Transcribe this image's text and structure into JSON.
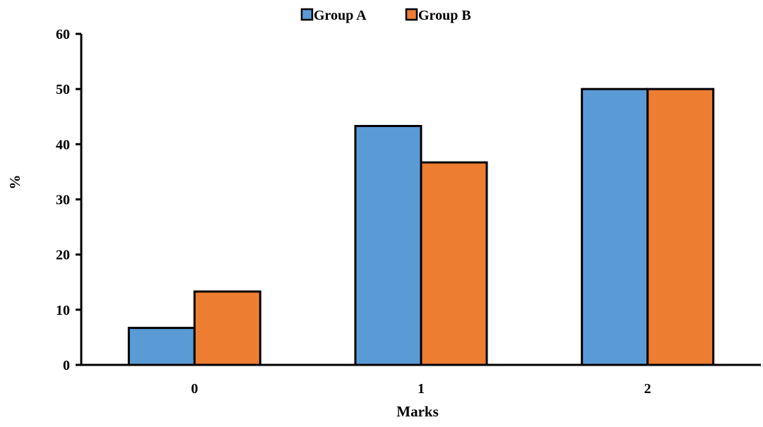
{
  "chart_data": {
    "type": "bar",
    "categories": [
      "0",
      "1",
      "2"
    ],
    "series": [
      {
        "name": "Group A",
        "values": [
          6.7,
          43.3,
          50
        ],
        "color": "#5b9bd5"
      },
      {
        "name": "Group B",
        "values": [
          13.3,
          36.7,
          50
        ],
        "color": "#ed7d31"
      }
    ],
    "xlabel": "Marks",
    "ylabel": "%",
    "ylim": [
      0,
      60
    ],
    "yticks": [
      0,
      10,
      20,
      30,
      40,
      50,
      60
    ],
    "grid": false,
    "legend_position": "top-center",
    "bar_outline_color": "#000000"
  }
}
